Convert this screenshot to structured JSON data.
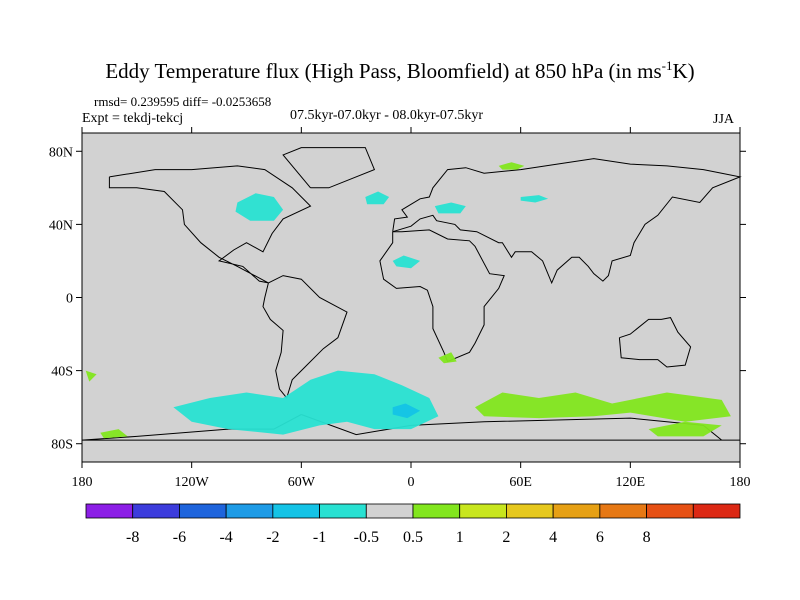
{
  "chart_data": {
    "type": "heatmap",
    "title_prefix": "Eddy Temperature flux (High Pass, Bloomfield) at 850 hPa (in ms",
    "title_exp": "-1",
    "title_suffix": "K)",
    "stats": "rmsd= 0.239595 diff= -0.0253658",
    "expt": "Expt = tekdj-tekcj",
    "period": "07.5kyr-07.0kyr - 08.0kyr-07.5kyr",
    "season": "JJA",
    "lon_range": [
      -180,
      180
    ],
    "lat_range": [
      -90,
      90
    ],
    "x_ticks": [
      {
        "lon": -180,
        "label": "180"
      },
      {
        "lon": -120,
        "label": "120W"
      },
      {
        "lon": -60,
        "label": "60W"
      },
      {
        "lon": 0,
        "label": "0"
      },
      {
        "lon": 60,
        "label": "60E"
      },
      {
        "lon": 120,
        "label": "120E"
      },
      {
        "lon": 180,
        "label": "180"
      }
    ],
    "y_ticks": [
      {
        "lat": 80,
        "label": "80N"
      },
      {
        "lat": 40,
        "label": "40N"
      },
      {
        "lat": 0,
        "label": "0"
      },
      {
        "lat": -40,
        "label": "40S"
      },
      {
        "lat": -80,
        "label": "80S"
      }
    ],
    "colorbar": {
      "colors": [
        "#8c1ee6",
        "#3c3cdc",
        "#1e64dc",
        "#1e9be6",
        "#14c3e6",
        "#28e1d2",
        "#d2d2d2",
        "#82e61e",
        "#c8e61e",
        "#e6c81e",
        "#e6a014",
        "#e67814",
        "#e65014",
        "#dc2814"
      ],
      "labels": [
        "-8",
        "-6",
        "-4",
        "-2",
        "-1",
        "-0.5",
        "0.5",
        "1",
        "2",
        "4",
        "6",
        "8"
      ]
    },
    "anomaly_regions": [
      {
        "name": "north-america-negative",
        "class": "-1 to -0.5",
        "points": [
          [
            -95,
            52
          ],
          [
            -85,
            57
          ],
          [
            -75,
            55
          ],
          [
            -70,
            48
          ],
          [
            -75,
            42
          ],
          [
            -88,
            42
          ],
          [
            -96,
            47
          ]
        ]
      },
      {
        "name": "north-atlantic-negative",
        "class": "-1 to -0.5",
        "points": [
          [
            -25,
            55
          ],
          [
            -18,
            58
          ],
          [
            -12,
            55
          ],
          [
            -15,
            51
          ],
          [
            -24,
            51
          ]
        ]
      },
      {
        "name": "central-asia-negative",
        "class": "-1 to -0.5",
        "points": [
          [
            13,
            50
          ],
          [
            22,
            52
          ],
          [
            30,
            50
          ],
          [
            27,
            46
          ],
          [
            15,
            46
          ]
        ]
      },
      {
        "name": "siberia-negative",
        "class": "-1 to -0.5",
        "points": [
          [
            60,
            55
          ],
          [
            70,
            56
          ],
          [
            75,
            54
          ],
          [
            68,
            52
          ],
          [
            60,
            53
          ]
        ]
      },
      {
        "name": "north-africa-negative",
        "class": "-1 to -0.5",
        "points": [
          [
            -10,
            20
          ],
          [
            -4,
            23
          ],
          [
            5,
            20
          ],
          [
            0,
            16
          ],
          [
            -8,
            17
          ]
        ]
      },
      {
        "name": "barents-sea-positive",
        "class": "0.5 to 1",
        "points": [
          [
            48,
            72
          ],
          [
            55,
            74
          ],
          [
            62,
            72
          ],
          [
            58,
            70
          ],
          [
            50,
            70
          ]
        ]
      },
      {
        "name": "southern-ocean-negative",
        "class": "-1 to -0.5",
        "points": [
          [
            -110,
            -55
          ],
          [
            -90,
            -52
          ],
          [
            -70,
            -55
          ],
          [
            -55,
            -45
          ],
          [
            -40,
            -40
          ],
          [
            -20,
            -42
          ],
          [
            -5,
            -48
          ],
          [
            10,
            -55
          ],
          [
            15,
            -65
          ],
          [
            0,
            -72
          ],
          [
            -20,
            -72
          ],
          [
            -35,
            -68
          ],
          [
            -50,
            -70
          ],
          [
            -70,
            -75
          ],
          [
            -100,
            -72
          ],
          [
            -120,
            -68
          ],
          [
            -130,
            -60
          ]
        ]
      },
      {
        "name": "southern-ocean-core",
        "class": "-2 to -1",
        "points": [
          [
            -10,
            -60
          ],
          [
            -3,
            -58
          ],
          [
            5,
            -62
          ],
          [
            -2,
            -66
          ],
          [
            -10,
            -64
          ]
        ]
      },
      {
        "name": "indian-ocean-positive",
        "class": "0.5 to 1",
        "points": [
          [
            35,
            -60
          ],
          [
            50,
            -52
          ],
          [
            70,
            -55
          ],
          [
            90,
            -52
          ],
          [
            110,
            -58
          ],
          [
            140,
            -52
          ],
          [
            170,
            -56
          ],
          [
            175,
            -65
          ],
          [
            150,
            -68
          ],
          [
            120,
            -63
          ],
          [
            100,
            -65
          ],
          [
            70,
            -66
          ],
          [
            40,
            -65
          ]
        ]
      },
      {
        "name": "ross-sea-positive",
        "class": "0.5 to 1",
        "points": [
          [
            130,
            -72
          ],
          [
            150,
            -68
          ],
          [
            170,
            -70
          ],
          [
            160,
            -76
          ],
          [
            135,
            -76
          ]
        ]
      },
      {
        "name": "south-atlantic-positive",
        "class": "0.5 to 1",
        "points": [
          [
            15,
            -33
          ],
          [
            22,
            -30
          ],
          [
            25,
            -35
          ],
          [
            18,
            -36
          ]
        ]
      },
      {
        "name": "south-pacific-positive",
        "class": "0.5 to 1",
        "points": [
          [
            -178,
            -40
          ],
          [
            -172,
            -42
          ],
          [
            -176,
            -46
          ]
        ]
      },
      {
        "name": "amundsen-positive",
        "class": "0.5 to 1",
        "points": [
          [
            -170,
            -74
          ],
          [
            -160,
            -72
          ],
          [
            -155,
            -76
          ],
          [
            -168,
            -77
          ]
        ]
      }
    ]
  }
}
